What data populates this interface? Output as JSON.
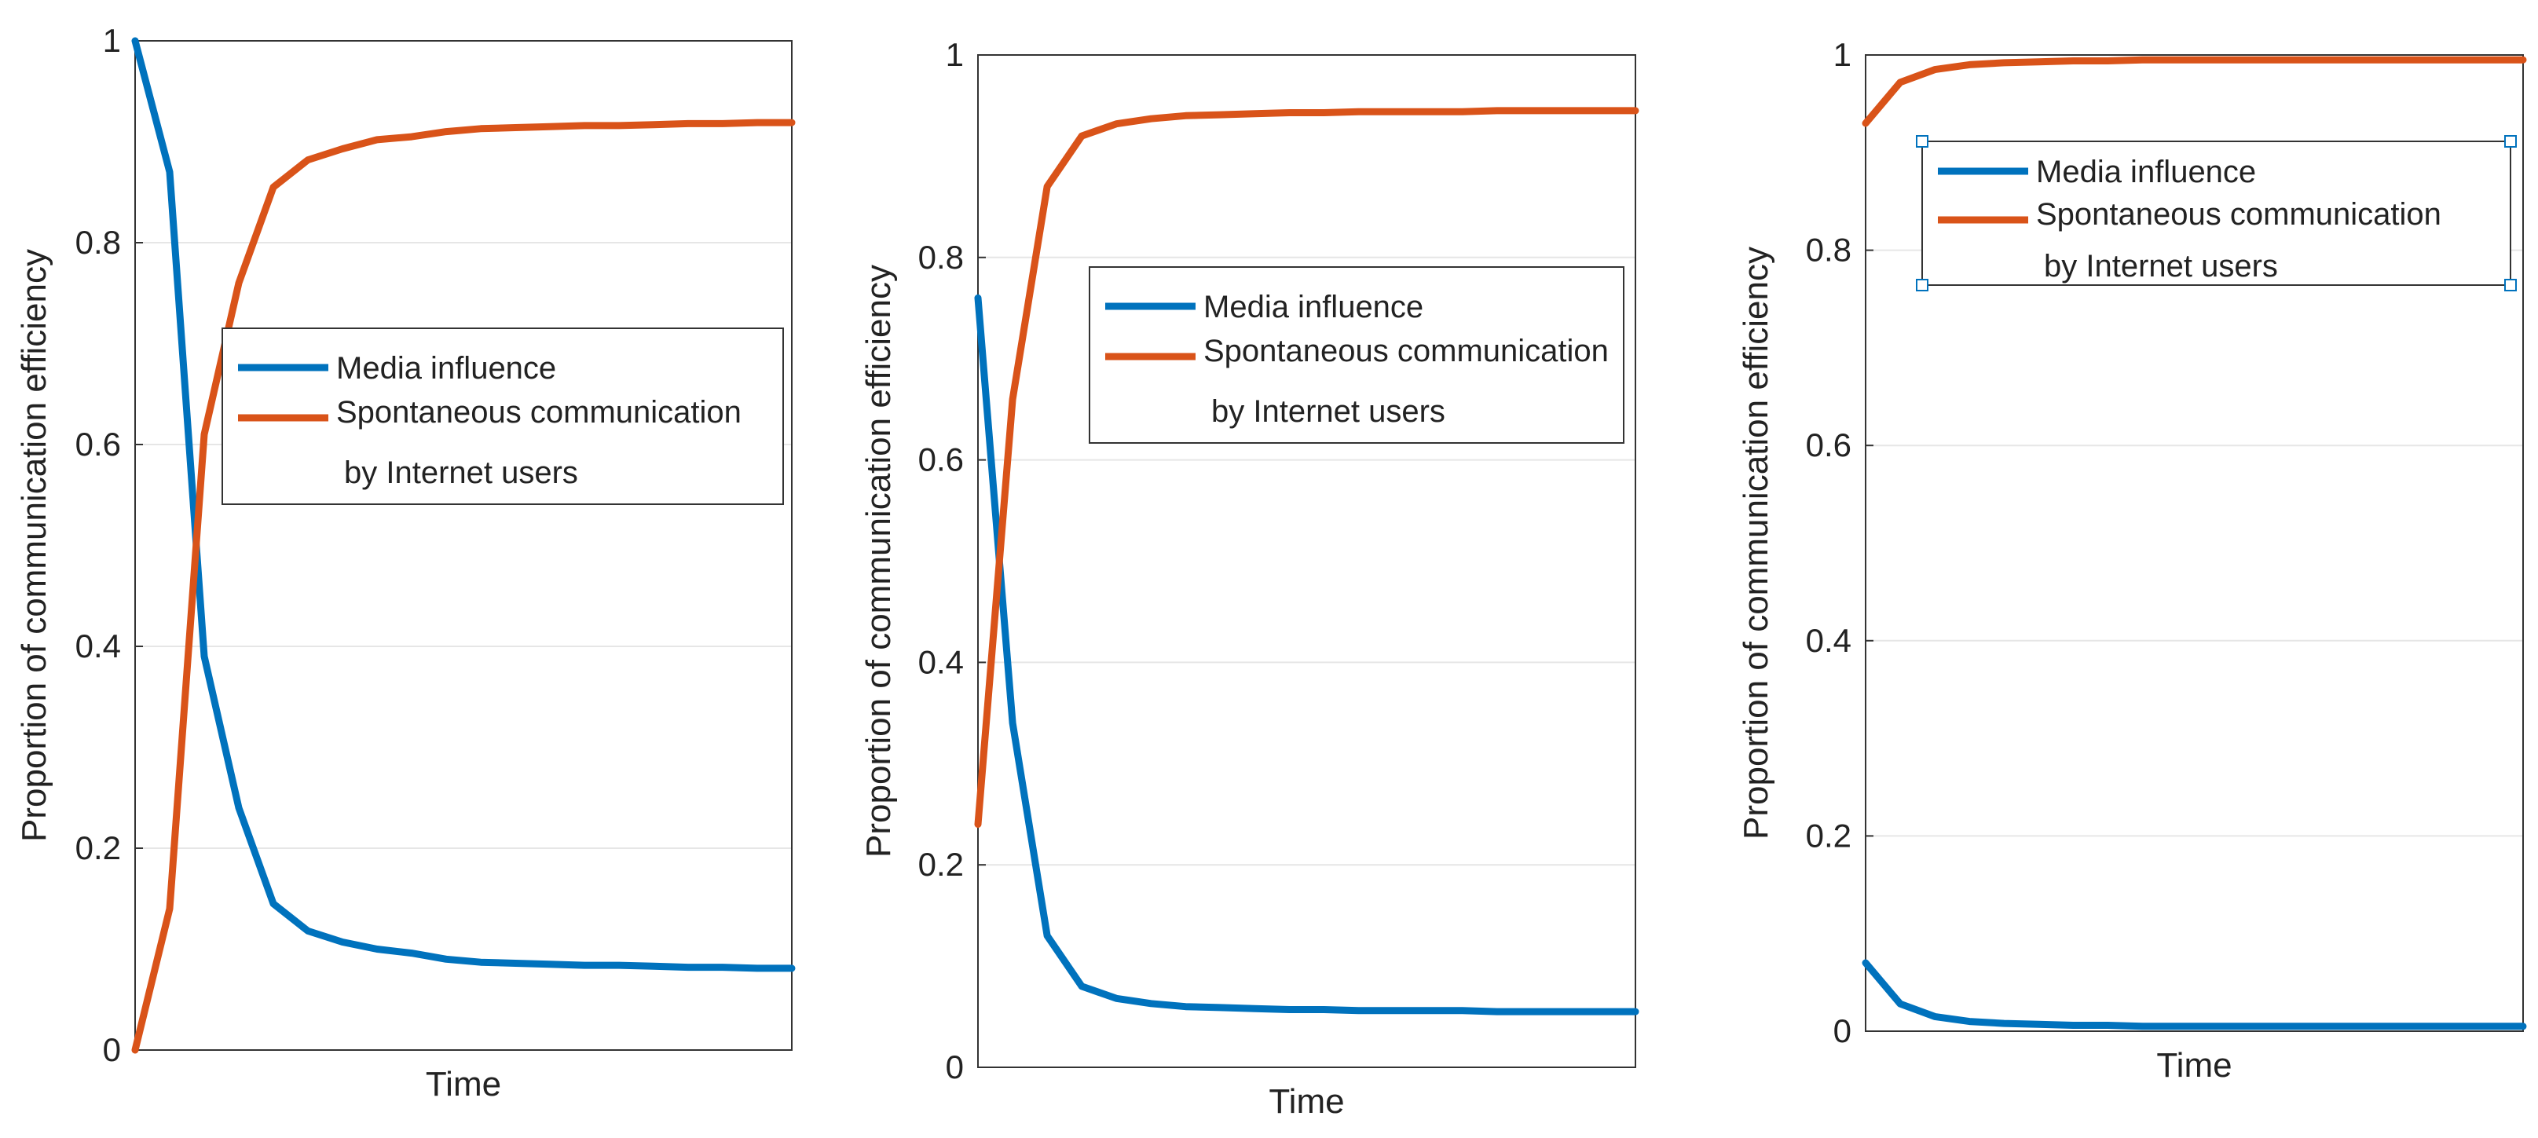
{
  "colors": {
    "media": "#0072BD",
    "spontaneous": "#D95319",
    "grid": "#e6e6e6",
    "axis": "#333333"
  },
  "chart_data": [
    {
      "type": "line",
      "xlabel": "Time",
      "ylabel": "Proportion of communication efficiency",
      "ylim": [
        0,
        1
      ],
      "yticks": [
        "0",
        "0.2",
        "0.4",
        "0.6",
        "0.8",
        "1"
      ],
      "grid": "horizontal",
      "legend": {
        "placement": "middle-right",
        "entries": [
          "Media influence",
          "Spontaneous communication",
          "by Internet users"
        ]
      },
      "x": [
        1,
        2,
        3,
        4,
        5,
        6,
        7,
        8,
        9,
        10,
        11,
        12,
        13,
        14,
        15,
        16,
        17,
        18,
        19,
        20
      ],
      "series": [
        {
          "name": "Media influence",
          "color": "media",
          "values": [
            1.0,
            0.87,
            0.39,
            0.24,
            0.145,
            0.118,
            0.107,
            0.1,
            0.096,
            0.09,
            0.087,
            0.086,
            0.085,
            0.084,
            0.084,
            0.083,
            0.082,
            0.082,
            0.081,
            0.081
          ]
        },
        {
          "name": "Spontaneous communication by Internet users",
          "color": "spontaneous",
          "values": [
            0.0,
            0.14,
            0.61,
            0.76,
            0.855,
            0.882,
            0.893,
            0.902,
            0.905,
            0.91,
            0.913,
            0.914,
            0.915,
            0.916,
            0.916,
            0.917,
            0.918,
            0.918,
            0.919,
            0.919
          ]
        }
      ]
    },
    {
      "type": "line",
      "xlabel": "Time",
      "ylabel": "Proportion of communication efficiency",
      "ylim": [
        0,
        1
      ],
      "yticks": [
        "0",
        "0.2",
        "0.4",
        "0.6",
        "0.8",
        "1"
      ],
      "grid": "horizontal",
      "legend": {
        "placement": "upper-right",
        "entries": [
          "Media influence",
          "Spontaneous communication",
          "by Internet users"
        ]
      },
      "x": [
        1,
        2,
        3,
        4,
        5,
        6,
        7,
        8,
        9,
        10,
        11,
        12,
        13,
        14,
        15,
        16,
        17,
        18,
        19,
        20
      ],
      "series": [
        {
          "name": "Media influence",
          "color": "media",
          "values": [
            0.76,
            0.34,
            0.13,
            0.08,
            0.068,
            0.063,
            0.06,
            0.059,
            0.058,
            0.057,
            0.057,
            0.056,
            0.056,
            0.056,
            0.056,
            0.055,
            0.055,
            0.055,
            0.055,
            0.055
          ]
        },
        {
          "name": "Spontaneous communication by Internet users",
          "color": "spontaneous",
          "values": [
            0.24,
            0.66,
            0.87,
            0.92,
            0.932,
            0.937,
            0.94,
            0.941,
            0.942,
            0.943,
            0.943,
            0.944,
            0.944,
            0.944,
            0.944,
            0.945,
            0.945,
            0.945,
            0.945,
            0.945
          ]
        }
      ]
    },
    {
      "type": "line",
      "xlabel": "Time",
      "ylabel": "Proportion of communication efficiency",
      "ylim": [
        0,
        1
      ],
      "yticks": [
        "0",
        "0.2",
        "0.4",
        "0.6",
        "0.8",
        "1"
      ],
      "grid": "horizontal",
      "legend": {
        "placement": "top-right",
        "entries": [
          "Media influence",
          "Spontaneous communication",
          "by Internet users"
        ]
      },
      "x": [
        1,
        2,
        3,
        4,
        5,
        6,
        7,
        8,
        9,
        10,
        11,
        12,
        13,
        14,
        15,
        16,
        17,
        18,
        19,
        20
      ],
      "series": [
        {
          "name": "Media influence",
          "color": "media",
          "values": [
            0.07,
            0.028,
            0.015,
            0.01,
            0.008,
            0.007,
            0.006,
            0.006,
            0.005,
            0.005,
            0.005,
            0.005,
            0.005,
            0.005,
            0.005,
            0.005,
            0.005,
            0.005,
            0.005,
            0.005
          ]
        },
        {
          "name": "Spontaneous communication by Internet users",
          "color": "spontaneous",
          "values": [
            0.93,
            0.972,
            0.985,
            0.99,
            0.992,
            0.993,
            0.994,
            0.994,
            0.995,
            0.995,
            0.995,
            0.995,
            0.995,
            0.995,
            0.995,
            0.995,
            0.995,
            0.995,
            0.995,
            0.995
          ]
        }
      ]
    }
  ]
}
